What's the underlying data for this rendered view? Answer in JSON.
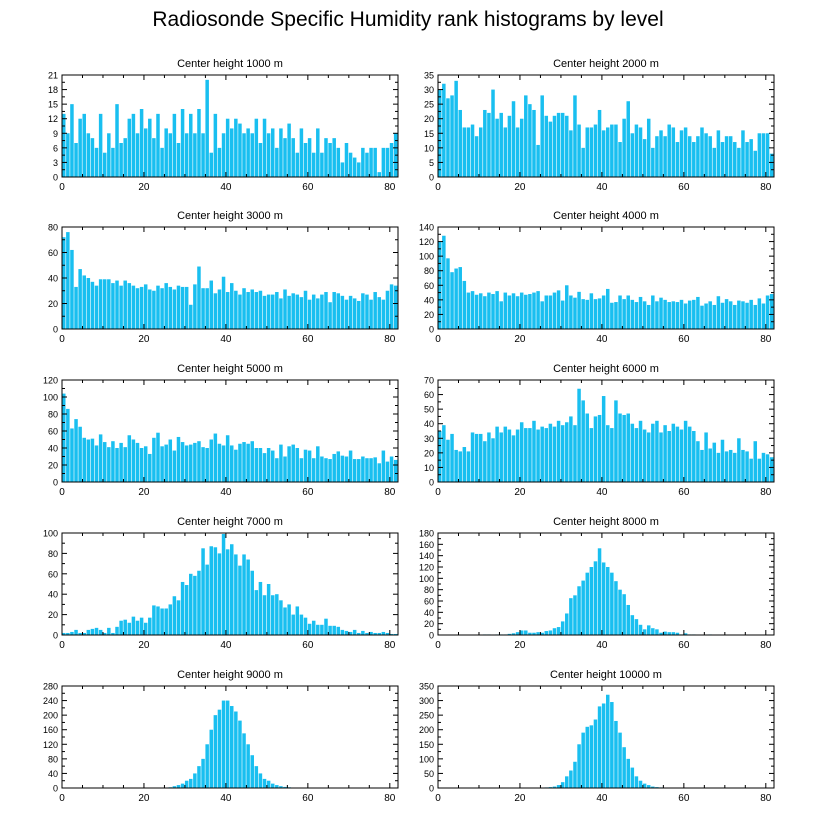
{
  "title": "Radiosonde Specific Humidity rank histograms by level",
  "bar_color": "#19bff0",
  "axis_color": "#000000",
  "chart_data": [
    {
      "type": "bar",
      "title": "Center height 1000 m",
      "xlim": [
        0,
        82
      ],
      "xticks": [
        0,
        20,
        40,
        60,
        80
      ],
      "ylim": [
        0,
        21
      ],
      "yticks": [
        0,
        3,
        6,
        9,
        12,
        15,
        18,
        21
      ],
      "values": [
        13,
        9,
        15,
        7,
        12,
        13,
        9,
        8,
        6,
        13,
        5,
        9,
        6,
        15,
        7,
        8,
        12,
        13,
        9,
        14,
        10,
        12,
        8,
        13,
        6,
        10,
        9,
        13,
        7,
        14,
        9,
        13,
        9,
        14,
        9,
        20,
        5,
        13,
        6,
        9,
        12,
        10,
        12,
        11,
        9,
        10,
        9,
        12,
        7,
        12,
        9,
        10,
        6,
        10,
        8,
        11,
        8,
        5,
        10,
        7,
        8,
        5,
        10,
        5,
        8,
        7,
        8,
        6,
        3,
        7,
        5,
        4,
        3,
        6,
        5,
        6,
        6,
        1,
        6,
        6,
        7,
        9
      ]
    },
    {
      "type": "bar",
      "title": "Center height 2000 m",
      "xlim": [
        0,
        82
      ],
      "xticks": [
        0,
        20,
        40,
        60,
        80
      ],
      "ylim": [
        0,
        35
      ],
      "yticks": [
        0,
        5,
        10,
        15,
        20,
        25,
        30,
        35
      ],
      "values": [
        30,
        32,
        27,
        28,
        33,
        23,
        17,
        17,
        18,
        14,
        17,
        23,
        22,
        30,
        20,
        22,
        17,
        21,
        26,
        17,
        20,
        28,
        25,
        23,
        11,
        28,
        21,
        19,
        21,
        22,
        22,
        21,
        16,
        28,
        18,
        10,
        17,
        17,
        18,
        23,
        16,
        17,
        18,
        18,
        12,
        20,
        26,
        15,
        18,
        17,
        13,
        20,
        10,
        14,
        16,
        14,
        18,
        17,
        12,
        16,
        17,
        14,
        12,
        14,
        17,
        15,
        14,
        10,
        16,
        12,
        14,
        14,
        12,
        10,
        16,
        12,
        13,
        9,
        15,
        15,
        15,
        8
      ]
    },
    {
      "type": "bar",
      "title": "Center height 3000 m",
      "xlim": [
        0,
        82
      ],
      "xticks": [
        0,
        20,
        40,
        60,
        80
      ],
      "ylim": [
        0,
        80
      ],
      "yticks": [
        0,
        20,
        40,
        60,
        80
      ],
      "values": [
        72,
        76,
        62,
        33,
        47,
        42,
        40,
        37,
        34,
        39,
        39,
        39,
        36,
        38,
        34,
        38,
        36,
        34,
        32,
        33,
        35,
        31,
        30,
        34,
        32,
        36,
        33,
        31,
        34,
        33,
        33,
        19,
        35,
        49,
        32,
        32,
        38,
        28,
        31,
        41,
        29,
        36,
        30,
        27,
        32,
        29,
        31,
        29,
        30,
        26,
        27,
        27,
        29,
        24,
        31,
        26,
        28,
        27,
        25,
        30,
        23,
        27,
        24,
        27,
        29,
        21,
        29,
        28,
        26,
        23,
        26,
        24,
        22,
        28,
        27,
        23,
        29,
        25,
        23,
        30,
        35,
        34
      ]
    },
    {
      "type": "bar",
      "title": "Center height 4000 m",
      "xlim": [
        0,
        82
      ],
      "xticks": [
        0,
        20,
        40,
        60,
        80
      ],
      "ylim": [
        0,
        140
      ],
      "yticks": [
        0,
        20,
        40,
        60,
        80,
        100,
        120,
        140
      ],
      "values": [
        120,
        128,
        97,
        78,
        83,
        85,
        66,
        50,
        52,
        47,
        49,
        45,
        50,
        48,
        52,
        38,
        50,
        46,
        49,
        45,
        50,
        47,
        48,
        50,
        52,
        38,
        46,
        46,
        50,
        53,
        39,
        60,
        46,
        43,
        51,
        41,
        40,
        49,
        41,
        42,
        46,
        55,
        36,
        37,
        46,
        41,
        46,
        40,
        37,
        44,
        38,
        33,
        46,
        38,
        43,
        40,
        37,
        38,
        37,
        40,
        35,
        39,
        40,
        44,
        32,
        35,
        38,
        33,
        45,
        36,
        41,
        38,
        33,
        39,
        38,
        36,
        40,
        33,
        42,
        35,
        46,
        48
      ]
    },
    {
      "type": "bar",
      "title": "Center height 5000 m",
      "xlim": [
        0,
        82
      ],
      "xticks": [
        0,
        20,
        40,
        60,
        80
      ],
      "ylim": [
        0,
        120
      ],
      "yticks": [
        0,
        20,
        40,
        60,
        80,
        100,
        120
      ],
      "values": [
        104,
        86,
        63,
        74,
        65,
        52,
        50,
        51,
        43,
        56,
        47,
        41,
        48,
        40,
        46,
        41,
        55,
        50,
        46,
        40,
        42,
        33,
        52,
        58,
        42,
        44,
        50,
        37,
        53,
        47,
        43,
        44,
        46,
        48,
        41,
        40,
        50,
        57,
        45,
        43,
        55,
        43,
        38,
        45,
        47,
        45,
        48,
        40,
        40,
        34,
        40,
        37,
        28,
        44,
        30,
        42,
        44,
        40,
        28,
        38,
        37,
        28,
        42,
        30,
        28,
        27,
        33,
        36,
        31,
        30,
        37,
        27,
        27,
        30,
        28,
        28,
        29,
        22,
        37,
        24,
        30,
        26
      ]
    },
    {
      "type": "bar",
      "title": "Center height 6000 m",
      "xlim": [
        0,
        82
      ],
      "xticks": [
        0,
        20,
        40,
        60,
        80
      ],
      "ylim": [
        0,
        70
      ],
      "yticks": [
        0,
        10,
        20,
        30,
        40,
        50,
        60,
        70
      ],
      "values": [
        35,
        39,
        29,
        33,
        22,
        21,
        24,
        21,
        34,
        33,
        33,
        28,
        34,
        30,
        38,
        34,
        38,
        36,
        32,
        36,
        41,
        37,
        37,
        42,
        36,
        38,
        37,
        40,
        38,
        42,
        39,
        41,
        45,
        39,
        64,
        56,
        47,
        37,
        45,
        46,
        59,
        39,
        37,
        56,
        47,
        46,
        47,
        40,
        37,
        42,
        36,
        34,
        40,
        42,
        34,
        39,
        35,
        40,
        38,
        36,
        42,
        38,
        35,
        28,
        22,
        34,
        23,
        27,
        20,
        29,
        21,
        22,
        20,
        30,
        22,
        21,
        16,
        28,
        16,
        20,
        19,
        17
      ]
    },
    {
      "type": "bar",
      "title": "Center height 7000 m",
      "xlim": [
        0,
        82
      ],
      "xticks": [
        0,
        20,
        40,
        60,
        80
      ],
      "ylim": [
        0,
        100
      ],
      "yticks": [
        0,
        20,
        40,
        60,
        80,
        100
      ],
      "values": [
        2,
        2,
        3,
        5,
        2,
        2,
        5,
        6,
        7,
        5,
        2,
        7,
        2,
        8,
        14,
        15,
        12,
        18,
        14,
        17,
        12,
        17,
        29,
        28,
        26,
        26,
        30,
        38,
        34,
        52,
        49,
        60,
        58,
        63,
        85,
        69,
        87,
        86,
        80,
        99,
        84,
        89,
        79,
        68,
        79,
        74,
        63,
        44,
        52,
        39,
        50,
        39,
        40,
        34,
        27,
        30,
        20,
        28,
        20,
        17,
        11,
        14,
        10,
        10,
        16,
        9,
        9,
        8,
        5,
        4,
        3,
        5,
        2,
        4,
        2,
        3,
        2,
        2,
        3,
        2,
        1,
        1
      ]
    },
    {
      "type": "bar",
      "title": "Center height 8000 m",
      "xlim": [
        0,
        82
      ],
      "xticks": [
        0,
        20,
        40,
        60,
        80
      ],
      "ylim": [
        0,
        180
      ],
      "yticks": [
        0,
        20,
        40,
        60,
        80,
        100,
        120,
        140,
        160,
        180
      ],
      "values": [
        0,
        0,
        0,
        0,
        0,
        0,
        0,
        0,
        0,
        0,
        0,
        1,
        1,
        0,
        1,
        1,
        1,
        2,
        3,
        5,
        8,
        8,
        4,
        4,
        5,
        4,
        7,
        8,
        12,
        14,
        24,
        38,
        65,
        70,
        86,
        96,
        110,
        120,
        130,
        153,
        128,
        120,
        110,
        95,
        80,
        72,
        53,
        35,
        28,
        18,
        10,
        17,
        12,
        10,
        4,
        6,
        5,
        5,
        4,
        1,
        3,
        1,
        1,
        0,
        0,
        0,
        1,
        0,
        0,
        0,
        0,
        0,
        0,
        0,
        0,
        0,
        0,
        0,
        0,
        0,
        0,
        0
      ]
    },
    {
      "type": "bar",
      "title": "Center height 9000 m",
      "xlim": [
        0,
        82
      ],
      "xticks": [
        0,
        20,
        40,
        60,
        80
      ],
      "ylim": [
        0,
        280
      ],
      "yticks": [
        0,
        40,
        80,
        120,
        160,
        200,
        240,
        280
      ],
      "values": [
        0,
        0,
        0,
        0,
        0,
        0,
        0,
        0,
        0,
        0,
        0,
        0,
        0,
        0,
        0,
        0,
        0,
        0,
        0,
        0,
        0,
        0,
        0,
        0,
        0,
        1,
        2,
        5,
        8,
        12,
        20,
        25,
        40,
        60,
        80,
        120,
        160,
        200,
        215,
        240,
        240,
        225,
        210,
        185,
        150,
        120,
        90,
        60,
        40,
        25,
        20,
        12,
        8,
        5,
        3,
        2,
        1,
        0,
        0,
        0,
        0,
        0,
        0,
        0,
        0,
        0,
        0,
        0,
        0,
        0,
        0,
        0,
        0,
        0,
        0,
        0,
        0,
        0,
        0,
        0,
        0,
        0
      ]
    },
    {
      "type": "bar",
      "title": "Center height 10000 m",
      "xlim": [
        0,
        82
      ],
      "xticks": [
        0,
        20,
        40,
        60,
        80
      ],
      "ylim": [
        0,
        350
      ],
      "yticks": [
        0,
        50,
        100,
        150,
        200,
        250,
        300,
        350
      ],
      "values": [
        0,
        0,
        0,
        0,
        0,
        0,
        0,
        0,
        0,
        0,
        0,
        0,
        0,
        0,
        0,
        0,
        0,
        0,
        0,
        0,
        0,
        0,
        0,
        0,
        0,
        0,
        2,
        3,
        5,
        10,
        20,
        40,
        60,
        90,
        150,
        190,
        210,
        215,
        235,
        280,
        290,
        320,
        295,
        230,
        190,
        140,
        100,
        70,
        40,
        25,
        15,
        10,
        5,
        3,
        2,
        1,
        0,
        0,
        0,
        0,
        0,
        0,
        0,
        0,
        0,
        0,
        0,
        0,
        0,
        0,
        0,
        0,
        0,
        0,
        0,
        0,
        0,
        0,
        0,
        0,
        0,
        0
      ]
    }
  ]
}
